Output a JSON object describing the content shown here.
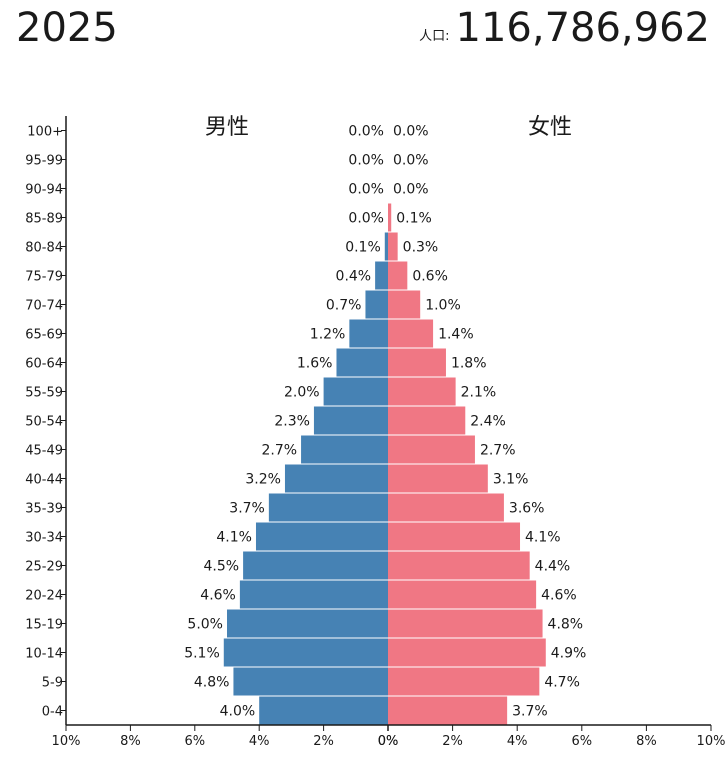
{
  "header": {
    "year": "2025",
    "population_label": "人口:",
    "population_value": "116,786,962"
  },
  "colors": {
    "male": "#4682b4",
    "female": "#f07784",
    "axis": "#1a1a1a"
  },
  "chart_data": {
    "type": "bar",
    "orientation": "horizontal-pyramid",
    "categories": [
      "100+",
      "95-99",
      "90-94",
      "85-89",
      "80-84",
      "75-79",
      "70-74",
      "65-69",
      "60-64",
      "55-59",
      "50-54",
      "45-49",
      "40-44",
      "35-39",
      "30-34",
      "25-29",
      "20-24",
      "15-19",
      "10-14",
      "5-9",
      "0-4"
    ],
    "series": [
      {
        "name": "男性",
        "values": [
          0.0,
          0.0,
          0.0,
          0.0,
          0.1,
          0.4,
          0.7,
          1.2,
          1.6,
          2.0,
          2.3,
          2.7,
          3.2,
          3.7,
          4.1,
          4.5,
          4.6,
          5.0,
          5.1,
          4.8,
          4.0
        ],
        "labels": [
          "0.0%",
          "0.0%",
          "0.0%",
          "0.0%",
          "0.1%",
          "0.4%",
          "0.7%",
          "1.2%",
          "1.6%",
          "2.0%",
          "2.3%",
          "2.7%",
          "3.2%",
          "3.7%",
          "4.1%",
          "4.5%",
          "4.6%",
          "5.0%",
          "5.1%",
          "4.8%",
          "4.0%"
        ]
      },
      {
        "name": "女性",
        "values": [
          0.0,
          0.0,
          0.0,
          0.1,
          0.3,
          0.6,
          1.0,
          1.4,
          1.8,
          2.1,
          2.4,
          2.7,
          3.1,
          3.6,
          4.1,
          4.4,
          4.6,
          4.8,
          4.9,
          4.7,
          3.7
        ],
        "labels": [
          "0.0%",
          "0.0%",
          "0.0%",
          "0.1%",
          "0.3%",
          "0.6%",
          "1.0%",
          "1.4%",
          "1.8%",
          "2.1%",
          "2.4%",
          "2.7%",
          "3.1%",
          "3.6%",
          "4.1%",
          "4.4%",
          "4.6%",
          "4.8%",
          "4.9%",
          "4.7%",
          "3.7%"
        ]
      }
    ],
    "xlim": [
      0,
      10
    ],
    "x_ticks_left": [
      "10%",
      "8%",
      "6%",
      "4%",
      "2%",
      "0%"
    ],
    "x_ticks_right": [
      "0%",
      "2%",
      "4%",
      "6%",
      "8%",
      "10%"
    ],
    "grid": false
  }
}
